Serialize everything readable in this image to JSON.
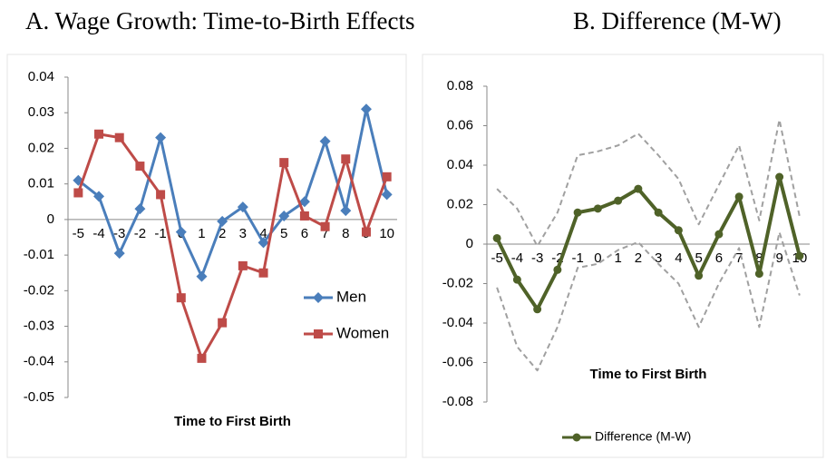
{
  "chart_data": [
    {
      "type": "line",
      "title": "A. Wage Growth: Time-to-Birth Effects",
      "x_label": "Time to First Birth",
      "categories": [
        "-5",
        "-4",
        "-3",
        "-2",
        "-1",
        "0",
        "1",
        "2",
        "3",
        "4",
        "5",
        "6",
        "7",
        "8",
        "9",
        "10"
      ],
      "series": [
        {
          "name": "Men",
          "color": "#4a7ebb",
          "marker": "diamond",
          "values": [
            0.011,
            0.0065,
            -0.0095,
            0.003,
            0.023,
            -0.0035,
            -0.016,
            -0.0005,
            0.0035,
            -0.0065,
            0.001,
            0.005,
            0.022,
            0.0025,
            0.031,
            0.007
          ]
        },
        {
          "name": "Women",
          "color": "#be4b48",
          "marker": "square",
          "values": [
            0.0075,
            0.024,
            0.023,
            0.015,
            0.007,
            -0.022,
            -0.039,
            -0.029,
            -0.013,
            -0.015,
            0.016,
            0.001,
            -0.002,
            0.017,
            -0.0035,
            0.012
          ]
        }
      ],
      "ylim": [
        -0.05,
        0.04
      ],
      "yticks": [
        0.04,
        0.03,
        0.02,
        0.01,
        0,
        -0.01,
        -0.02,
        -0.03,
        -0.04,
        -0.05
      ],
      "legend": "right"
    },
    {
      "type": "line",
      "title": "B. Difference (M-W)",
      "x_label": "Time to First Birth",
      "categories": [
        "-5",
        "-4",
        "-3",
        "-2",
        "-1",
        "0",
        "1",
        "2",
        "3",
        "4",
        "5",
        "6",
        "7",
        "8",
        "9",
        "10"
      ],
      "series": [
        {
          "color": "#a0a0a0",
          "style": "dashed",
          "values": [
            0.028,
            0.018,
            -0.001,
            0.016,
            0.045,
            0.047,
            0.05,
            0.056,
            0.045,
            0.033,
            0.01,
            0.03,
            0.05,
            0.012,
            0.063,
            0.014
          ]
        },
        {
          "color": "#a0a0a0",
          "style": "dashed",
          "values": [
            -0.022,
            -0.052,
            -0.064,
            -0.042,
            -0.012,
            -0.01,
            -0.003,
            0.001,
            -0.01,
            -0.02,
            -0.042,
            -0.02,
            -0.002,
            -0.042,
            0.006,
            -0.026
          ]
        },
        {
          "name": "Difference (M-W)",
          "color": "#4f6228",
          "marker": "circle",
          "values": [
            0.003,
            -0.018,
            -0.033,
            -0.013,
            0.016,
            0.018,
            0.022,
            0.028,
            0.016,
            0.007,
            -0.016,
            0.005,
            0.024,
            -0.015,
            0.034,
            -0.006
          ]
        }
      ],
      "ylim": [
        -0.08,
        0.08
      ],
      "yticks": [
        0.08,
        0.06,
        0.04,
        0.02,
        0,
        -0.02,
        -0.04,
        -0.06,
        -0.08
      ],
      "legend": "bottom"
    }
  ]
}
